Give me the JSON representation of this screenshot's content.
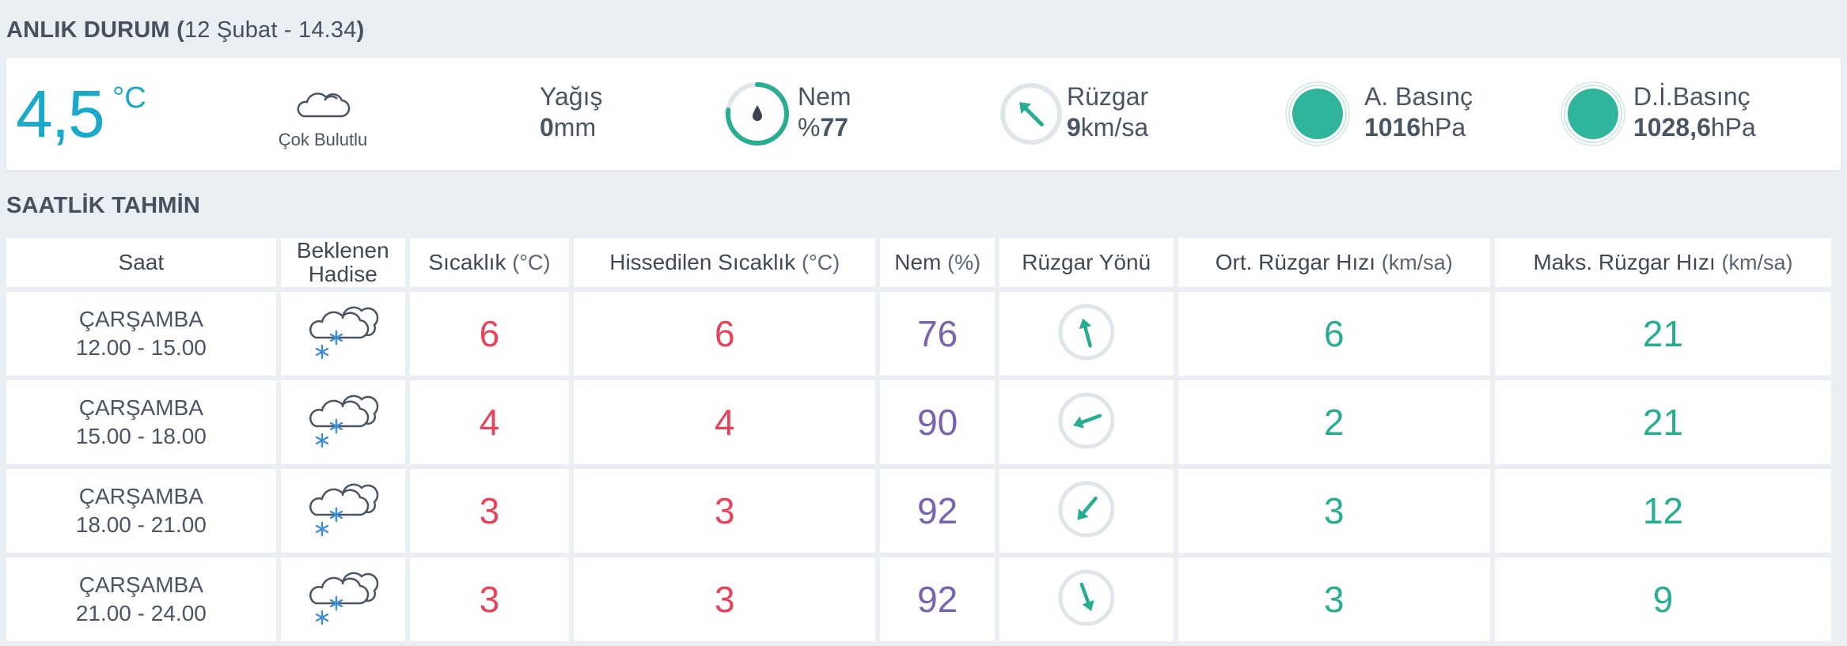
{
  "current": {
    "heading": "ANLIK DURUM",
    "heading_open": "(",
    "datetime": "12 Şubat - 14.34",
    "heading_close": ")",
    "temperature": "4,5",
    "temperature_unit": "°C",
    "condition": "Çok Bulutlu",
    "precip_label": "Yağış",
    "precip_value": "0",
    "precip_unit": "mm",
    "humidity_label": "Nem",
    "humidity_prefix": "%",
    "humidity_value": "77",
    "humidity_fraction": 0.77,
    "wind_label": "Rüzgar",
    "wind_value": "9",
    "wind_unit": "km/sa",
    "pressure_label": "A. Basınç",
    "pressure_value": "1016",
    "pressure_unit": "hPa",
    "sea_pressure_label": "D.İ.Basınç",
    "sea_pressure_value": "1028,6",
    "sea_pressure_unit": "hPa",
    "colors": {
      "accent": "#1aa9c8",
      "green": "#28ad92",
      "red": "#e8435a",
      "purple": "#7a63ad"
    }
  },
  "hourly": {
    "heading": "SAATLİK TAHMİN",
    "headers": {
      "saat": "Saat",
      "hadise_1": "Beklenen",
      "hadise_2": "Hadise",
      "sicaklik": "Sıcaklık",
      "sicaklik_unit": "(°C)",
      "hissedilen": "Hissedilen Sıcaklık",
      "hissedilen_unit": "(°C)",
      "nem": "Nem",
      "nem_unit": "(%)",
      "ruzgar_yonu": "Rüzgar Yönü",
      "ort_ruzgar": "Ort. Rüzgar Hızı",
      "ort_ruzgar_unit": "(km/sa)",
      "maks_ruzgar": "Maks. Rüzgar Hızı",
      "maks_ruzgar_unit": "(km/sa)"
    },
    "rows": [
      {
        "day": "ÇARŞAMBA",
        "time": "12.00 - 15.00",
        "icon": "snow-cloud-icon",
        "temp": "6",
        "feels": "6",
        "humidity": "76",
        "wind_dir_deg": 165,
        "wind_avg": "6",
        "wind_max": "21"
      },
      {
        "day": "ÇARŞAMBA",
        "time": "15.00 - 18.00",
        "icon": "snow-cloud-icon",
        "temp": "4",
        "feels": "4",
        "humidity": "90",
        "wind_dir_deg": 70,
        "wind_avg": "2",
        "wind_max": "21"
      },
      {
        "day": "ÇARŞAMBA",
        "time": "18.00 - 21.00",
        "icon": "snow-cloud-icon",
        "temp": "3",
        "feels": "3",
        "humidity": "92",
        "wind_dir_deg": 40,
        "wind_avg": "3",
        "wind_max": "12"
      },
      {
        "day": "ÇARŞAMBA",
        "time": "21.00 - 24.00",
        "icon": "snow-cloud-icon",
        "temp": "3",
        "feels": "3",
        "humidity": "92",
        "wind_dir_deg": 340,
        "wind_avg": "3",
        "wind_max": "9"
      }
    ]
  }
}
